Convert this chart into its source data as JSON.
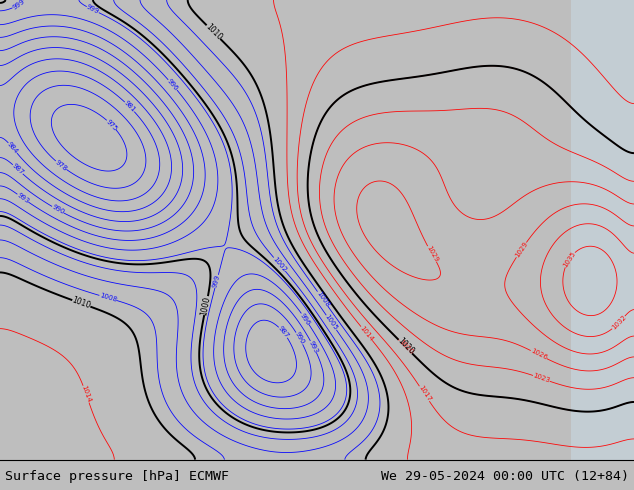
{
  "title_left": "Surface pressure [hPa] ECMWF",
  "title_right": "We 29-05-2024 00:00 UTC (12+84)",
  "footer_bg": "#bebebe",
  "footer_text_color": "#000000",
  "footer_fontsize": 9.5,
  "map_bg_land": "#a8c878",
  "map_bg_ocean": "#d8eef8",
  "contour_interval": 3,
  "base_pressure": 1015.0
}
